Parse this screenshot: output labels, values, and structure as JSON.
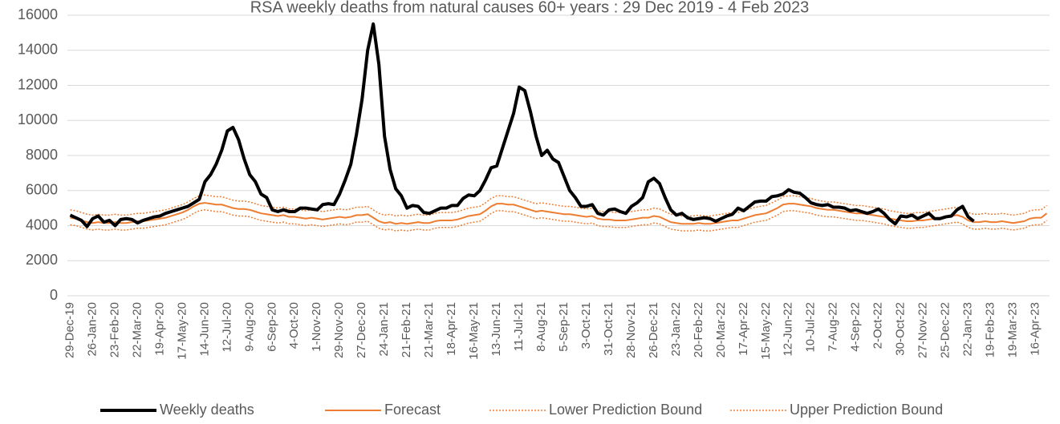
{
  "chart_data": {
    "type": "line",
    "title": "RSA weekly deaths from natural causes 60+ years : 29 Dec 2019 - 4 Feb 2023",
    "categories": [
      "29-Dec-19",
      null,
      null,
      null,
      "26-Jan-20",
      null,
      null,
      null,
      "23-Feb-20",
      null,
      null,
      null,
      "22-Mar-20",
      null,
      null,
      null,
      "19-Apr-20",
      null,
      null,
      null,
      "17-May-20",
      null,
      null,
      null,
      "14-Jun-20",
      null,
      null,
      null,
      "12-Jul-20",
      null,
      null,
      null,
      "9-Aug-20",
      null,
      null,
      null,
      "6-Sep-20",
      null,
      null,
      null,
      "4-Oct-20",
      null,
      null,
      null,
      "1-Nov-20",
      null,
      null,
      null,
      "29-Nov-20",
      null,
      null,
      null,
      "27-Dec-20",
      null,
      null,
      null,
      "24-Jan-21",
      null,
      null,
      null,
      "21-Feb-21",
      null,
      null,
      null,
      "21-Mar-21",
      null,
      null,
      null,
      "18-Apr-21",
      null,
      null,
      null,
      "16-May-21",
      null,
      null,
      null,
      "13-Jun-21",
      null,
      null,
      null,
      "11-Jul-21",
      null,
      null,
      null,
      "8-Aug-21",
      null,
      null,
      null,
      "5-Sep-21",
      null,
      null,
      null,
      "3-Oct-21",
      null,
      null,
      null,
      "31-Oct-21",
      null,
      null,
      null,
      "28-Nov-21",
      null,
      null,
      null,
      "26-Dec-21",
      null,
      null,
      null,
      "23-Jan-22",
      null,
      null,
      null,
      "20-Feb-22",
      null,
      null,
      null,
      "20-Mar-22",
      null,
      null,
      null,
      "17-Apr-22",
      null,
      null,
      null,
      "15-May-22",
      null,
      null,
      null,
      "12-Jun-22",
      null,
      null,
      null,
      "10-Jul-22",
      null,
      null,
      null,
      "7-Aug-22",
      null,
      null,
      null,
      "4-Sep-22",
      null,
      null,
      null,
      "2-Oct-22",
      null,
      null,
      null,
      "30-Oct-22",
      null,
      null,
      null,
      "27-Nov-22",
      null,
      null,
      null,
      "25-Dec-22",
      null,
      null,
      null,
      "22-Jan-23",
      null,
      null,
      null,
      "19-Feb-23",
      null,
      null,
      null,
      "19-Mar-23",
      null,
      null,
      null,
      "16-Apr-23",
      null,
      null
    ],
    "series": [
      {
        "name": "Weekly deaths",
        "color": "#000000",
        "width": 4,
        "dotted": false,
        "values": [
          4600,
          4450,
          4300,
          3950,
          4400,
          4550,
          4200,
          4300,
          4000,
          4350,
          4400,
          4350,
          4150,
          4300,
          4400,
          4500,
          4550,
          4700,
          4800,
          4900,
          5000,
          5100,
          5300,
          5500,
          6500,
          6900,
          7500,
          8300,
          9400,
          9600,
          8900,
          7800,
          6900,
          6500,
          5800,
          5600,
          4900,
          4800,
          4900,
          4800,
          4800,
          5000,
          5000,
          4950,
          4900,
          5200,
          5250,
          5200,
          5800,
          6600,
          7500,
          9200,
          11200,
          14000,
          15500,
          13200,
          9100,
          7200,
          6100,
          5700,
          5000,
          5150,
          5100,
          4750,
          4700,
          4850,
          5000,
          5000,
          5150,
          5150,
          5550,
          5750,
          5700,
          6000,
          6600,
          7300,
          7400,
          8400,
          9400,
          10400,
          11900,
          11700,
          10500,
          9100,
          8000,
          8300,
          7800,
          7600,
          6800,
          6000,
          5600,
          5100,
          5100,
          5200,
          4700,
          4600,
          4900,
          4950,
          4800,
          4700,
          5100,
          5300,
          5600,
          6500,
          6700,
          6400,
          5600,
          4900,
          4600,
          4700,
          4450,
          4350,
          4400,
          4450,
          4400,
          4250,
          4400,
          4550,
          4650,
          5000,
          4850,
          5100,
          5350,
          5400,
          5400,
          5650,
          5700,
          5800,
          6050,
          5900,
          5850,
          5600,
          5300,
          5200,
          5150,
          5200,
          5050,
          5050,
          5000,
          4850,
          4900,
          4800,
          4700,
          4800,
          4950,
          4700,
          4350,
          4100,
          4550,
          4500,
          4600,
          4400,
          4550,
          4700,
          4400,
          4400,
          4500,
          4550,
          4900,
          5100,
          4500,
          4250,
          null,
          null,
          null,
          null,
          null,
          null,
          null,
          null,
          null,
          null,
          null,
          null,
          null
        ]
      },
      {
        "name": "Forecast",
        "color": "#ed7d31",
        "width": 2,
        "dotted": false,
        "values": [
          4450,
          4400,
          4300,
          4200,
          4150,
          4200,
          4150,
          4150,
          4200,
          4150,
          4150,
          4200,
          4250,
          4250,
          4300,
          4350,
          4400,
          4450,
          4550,
          4650,
          4750,
          4900,
          5100,
          5250,
          5300,
          5250,
          5200,
          5200,
          5100,
          5000,
          4950,
          4950,
          4900,
          4800,
          4700,
          4650,
          4600,
          4550,
          4600,
          4500,
          4500,
          4450,
          4400,
          4450,
          4400,
          4350,
          4400,
          4450,
          4500,
          4450,
          4500,
          4600,
          4600,
          4650,
          4450,
          4250,
          4150,
          4200,
          4100,
          4150,
          4100,
          4150,
          4200,
          4150,
          4150,
          4250,
          4300,
          4300,
          4300,
          4350,
          4450,
          4550,
          4600,
          4650,
          4850,
          5100,
          5250,
          5250,
          5200,
          5200,
          5100,
          5000,
          4900,
          4800,
          4850,
          4800,
          4750,
          4700,
          4650,
          4650,
          4600,
          4550,
          4500,
          4550,
          4400,
          4350,
          4350,
          4300,
          4300,
          4300,
          4350,
          4400,
          4450,
          4450,
          4550,
          4500,
          4350,
          4200,
          4150,
          4100,
          4100,
          4100,
          4150,
          4100,
          4100,
          4150,
          4200,
          4250,
          4300,
          4300,
          4400,
          4500,
          4600,
          4650,
          4700,
          4850,
          5000,
          5200,
          5250,
          5250,
          5200,
          5150,
          5100,
          5000,
          4950,
          4900,
          4900,
          4850,
          4800,
          4750,
          4700,
          4700,
          4650,
          4600,
          4550,
          4500,
          4400,
          4350,
          4300,
          4250,
          4250,
          4300,
          4300,
          4350,
          4400,
          4450,
          4500,
          4550,
          4600,
          4500,
          4300,
          4200,
          4200,
          4250,
          4200,
          4200,
          4250,
          4200,
          4150,
          4200,
          4250,
          4400,
          4450,
          4450,
          4700
        ]
      },
      {
        "name": "Lower Prediction Bound",
        "color": "#ed7d31",
        "width": 1.5,
        "dotted": true,
        "values": [
          4050,
          4000,
          3900,
          3800,
          3750,
          3800,
          3750,
          3750,
          3800,
          3750,
          3750,
          3800,
          3850,
          3850,
          3900,
          3950,
          4000,
          4050,
          4150,
          4250,
          4350,
          4500,
          4700,
          4850,
          4900,
          4850,
          4800,
          4800,
          4700,
          4600,
          4550,
          4550,
          4500,
          4400,
          4300,
          4250,
          4200,
          4150,
          4200,
          4100,
          4100,
          4050,
          4000,
          4050,
          4000,
          3950,
          4000,
          4050,
          4100,
          4050,
          4100,
          4200,
          4200,
          4250,
          4050,
          3850,
          3750,
          3800,
          3700,
          3750,
          3700,
          3750,
          3800,
          3750,
          3750,
          3850,
          3900,
          3900,
          3900,
          3950,
          4050,
          4150,
          4200,
          4250,
          4450,
          4700,
          4850,
          4850,
          4800,
          4800,
          4700,
          4600,
          4500,
          4400,
          4450,
          4400,
          4350,
          4300,
          4250,
          4250,
          4200,
          4150,
          4100,
          4150,
          4000,
          3950,
          3950,
          3900,
          3900,
          3900,
          3950,
          4000,
          4050,
          4050,
          4150,
          4100,
          3950,
          3800,
          3750,
          3700,
          3700,
          3700,
          3750,
          3700,
          3700,
          3750,
          3800,
          3850,
          3900,
          3900,
          4000,
          4100,
          4200,
          4250,
          4300,
          4450,
          4600,
          4800,
          4850,
          4850,
          4800,
          4750,
          4700,
          4600,
          4550,
          4500,
          4500,
          4450,
          4400,
          4350,
          4300,
          4300,
          4250,
          4200,
          4150,
          4100,
          4000,
          3950,
          3900,
          3850,
          3850,
          3900,
          3900,
          3950,
          4000,
          4050,
          4100,
          4150,
          4200,
          4100,
          3900,
          3800,
          3800,
          3850,
          3800,
          3800,
          3850,
          3800,
          3750,
          3800,
          3850,
          4000,
          4050,
          4050,
          4300
        ]
      },
      {
        "name": "Upper Prediction Bound",
        "color": "#ed7d31",
        "width": 1.5,
        "dotted": true,
        "values": [
          4900,
          4850,
          4750,
          4650,
          4600,
          4650,
          4600,
          4600,
          4650,
          4600,
          4600,
          4650,
          4700,
          4700,
          4750,
          4800,
          4850,
          4900,
          5000,
          5100,
          5200,
          5350,
          5550,
          5700,
          5750,
          5700,
          5650,
          5650,
          5550,
          5450,
          5400,
          5400,
          5350,
          5250,
          5150,
          5100,
          5050,
          5000,
          5050,
          4950,
          4950,
          4900,
          4850,
          4900,
          4850,
          4800,
          4850,
          4900,
          4950,
          4900,
          4950,
          5050,
          5050,
          5100,
          4900,
          4700,
          4600,
          4650,
          4550,
          4600,
          4550,
          4600,
          4650,
          4600,
          4600,
          4700,
          4750,
          4750,
          4750,
          4800,
          4900,
          5000,
          5050,
          5100,
          5300,
          5550,
          5700,
          5700,
          5650,
          5650,
          5550,
          5450,
          5350,
          5250,
          5300,
          5250,
          5200,
          5150,
          5100,
          5100,
          5050,
          5000,
          4950,
          5000,
          4850,
          4800,
          4800,
          4750,
          4750,
          4750,
          4800,
          4850,
          4900,
          4900,
          5000,
          4950,
          4800,
          4650,
          4600,
          4550,
          4550,
          4550,
          4600,
          4550,
          4550,
          4600,
          4650,
          4700,
          4750,
          4750,
          4850,
          4950,
          5050,
          5100,
          5150,
          5300,
          5450,
          5650,
          5700,
          5700,
          5650,
          5600,
          5550,
          5450,
          5400,
          5350,
          5350,
          5300,
          5250,
          5200,
          5150,
          5150,
          5100,
          5050,
          5000,
          4950,
          4850,
          4800,
          4750,
          4700,
          4700,
          4750,
          4750,
          4800,
          4850,
          4900,
          4950,
          5000,
          5050,
          4950,
          4750,
          4650,
          4650,
          4700,
          4650,
          4650,
          4700,
          4650,
          4600,
          4650,
          4700,
          4850,
          4900,
          4900,
          5150
        ]
      }
    ],
    "ylim": [
      0,
      16000
    ],
    "yticks": [
      0,
      2000,
      4000,
      6000,
      8000,
      10000,
      12000,
      14000,
      16000
    ],
    "grid": true,
    "legend": "bottom"
  }
}
